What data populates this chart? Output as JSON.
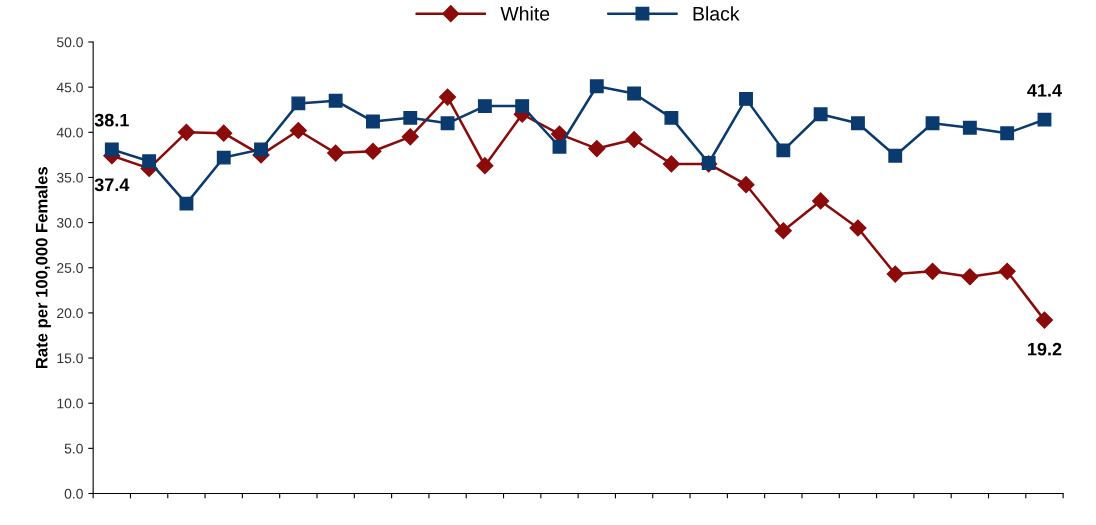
{
  "chart_data": {
    "type": "line",
    "ylabel": "Rate per 100,000 Females",
    "categories": [
      null,
      null,
      null,
      null,
      null,
      null,
      null,
      null,
      null,
      null,
      null,
      null,
      null,
      null,
      null,
      null,
      null,
      null,
      null,
      null,
      null,
      null,
      null,
      null,
      null,
      null
    ],
    "series": [
      {
        "name": "White",
        "color": "#8b0a0a",
        "marker": "diamond",
        "values": [
          37.4,
          36.0,
          40.0,
          39.9,
          37.5,
          40.2,
          37.7,
          37.9,
          39.5,
          43.9,
          36.3,
          42.0,
          39.8,
          38.2,
          39.2,
          36.5,
          36.5,
          34.2,
          29.1,
          32.4,
          29.4,
          24.3,
          24.6,
          24.0,
          24.6,
          19.2
        ],
        "value_labels": [
          "37.4",
          null,
          null,
          null,
          null,
          null,
          null,
          null,
          null,
          null,
          null,
          null,
          null,
          null,
          null,
          null,
          null,
          null,
          null,
          null,
          null,
          null,
          null,
          null,
          null,
          "19.2"
        ]
      },
      {
        "name": "Black",
        "color": "#0b3a6e",
        "marker": "square",
        "values": [
          38.1,
          36.8,
          32.1,
          37.2,
          38.1,
          43.2,
          43.5,
          41.2,
          41.6,
          41.0,
          42.9,
          42.9,
          38.4,
          45.1,
          44.3,
          41.6,
          36.6,
          43.7,
          38.0,
          42.0,
          41.0,
          37.4,
          41.0,
          40.5,
          39.9,
          41.4
        ],
        "value_labels": [
          "38.1",
          null,
          null,
          null,
          null,
          null,
          null,
          null,
          null,
          null,
          null,
          null,
          null,
          null,
          null,
          null,
          null,
          null,
          null,
          null,
          null,
          null,
          null,
          null,
          null,
          "41.4"
        ]
      }
    ],
    "ylim": [
      0,
      50
    ],
    "yticks": [
      {
        "value": 0,
        "label": "0.0"
      },
      {
        "value": 5,
        "label": "5.0"
      },
      {
        "value": 10,
        "label": "10.0"
      },
      {
        "value": 15,
        "label": "15.0"
      },
      {
        "value": 20,
        "label": "20.0"
      },
      {
        "value": 25,
        "label": "25.0"
      },
      {
        "value": 30,
        "label": "30.0"
      },
      {
        "value": 35,
        "label": "35.0"
      },
      {
        "value": 40,
        "label": "40.0"
      },
      {
        "value": 45,
        "label": "45.0"
      },
      {
        "value": 50,
        "label": "50.0"
      }
    ],
    "grid": false,
    "legend": "top",
    "line_style": "solid"
  }
}
